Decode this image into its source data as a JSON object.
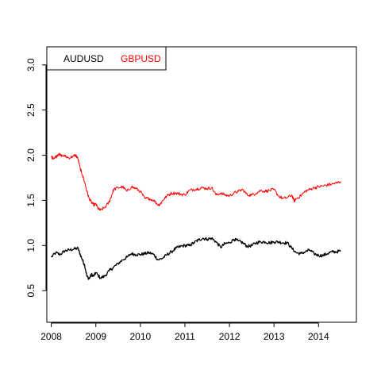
{
  "chart_data": {
    "type": "line",
    "title": "",
    "xlabel": "",
    "ylabel": "",
    "xlim": [
      2007.9,
      2014.85
    ],
    "ylim": [
      0.15,
      3.2
    ],
    "x_ticks": [
      2008,
      2009,
      2010,
      2011,
      2012,
      2013,
      2014
    ],
    "x_tick_labels": [
      "2008",
      "2009",
      "2010",
      "2011",
      "2012",
      "2013",
      "2014"
    ],
    "y_ticks": [
      0.5,
      1.0,
      1.5,
      2.0,
      2.5,
      3.0
    ],
    "y_tick_labels": [
      "0.5",
      "1.0",
      "1.5",
      "2.0",
      "2.5",
      "3.0"
    ],
    "grid": false,
    "legend_position": "top-left",
    "series": [
      {
        "name": "AUDUSD",
        "color": "#000000",
        "points": [
          [
            2008.0,
            0.87
          ],
          [
            2008.1,
            0.92
          ],
          [
            2008.2,
            0.9
          ],
          [
            2008.3,
            0.94
          ],
          [
            2008.4,
            0.95
          ],
          [
            2008.5,
            0.96
          ],
          [
            2008.6,
            0.97
          ],
          [
            2008.65,
            0.9
          ],
          [
            2008.7,
            0.84
          ],
          [
            2008.75,
            0.78
          ],
          [
            2008.8,
            0.66
          ],
          [
            2008.85,
            0.63
          ],
          [
            2008.9,
            0.68
          ],
          [
            2008.95,
            0.66
          ],
          [
            2009.0,
            0.7
          ],
          [
            2009.1,
            0.64
          ],
          [
            2009.2,
            0.66
          ],
          [
            2009.3,
            0.72
          ],
          [
            2009.4,
            0.76
          ],
          [
            2009.5,
            0.8
          ],
          [
            2009.6,
            0.84
          ],
          [
            2009.7,
            0.87
          ],
          [
            2009.8,
            0.91
          ],
          [
            2009.9,
            0.9
          ],
          [
            2010.0,
            0.9
          ],
          [
            2010.1,
            0.91
          ],
          [
            2010.2,
            0.92
          ],
          [
            2010.3,
            0.9
          ],
          [
            2010.4,
            0.84
          ],
          [
            2010.5,
            0.86
          ],
          [
            2010.6,
            0.9
          ],
          [
            2010.7,
            0.93
          ],
          [
            2010.8,
            0.97
          ],
          [
            2010.9,
            0.99
          ],
          [
            2011.0,
            1.0
          ],
          [
            2011.1,
            1.0
          ],
          [
            2011.2,
            1.03
          ],
          [
            2011.3,
            1.06
          ],
          [
            2011.4,
            1.08
          ],
          [
            2011.5,
            1.07
          ],
          [
            2011.6,
            1.08
          ],
          [
            2011.7,
            1.04
          ],
          [
            2011.8,
            0.98
          ],
          [
            2011.9,
            1.02
          ],
          [
            2012.0,
            1.03
          ],
          [
            2012.1,
            1.07
          ],
          [
            2012.2,
            1.05
          ],
          [
            2012.3,
            1.03
          ],
          [
            2012.4,
            0.99
          ],
          [
            2012.5,
            1.0
          ],
          [
            2012.6,
            1.03
          ],
          [
            2012.7,
            1.04
          ],
          [
            2012.8,
            1.04
          ],
          [
            2012.9,
            1.03
          ],
          [
            2013.0,
            1.04
          ],
          [
            2013.1,
            1.04
          ],
          [
            2013.2,
            1.03
          ],
          [
            2013.3,
            1.03
          ],
          [
            2013.4,
            0.97
          ],
          [
            2013.5,
            0.92
          ],
          [
            2013.6,
            0.91
          ],
          [
            2013.7,
            0.93
          ],
          [
            2013.8,
            0.95
          ],
          [
            2013.9,
            0.91
          ],
          [
            2014.0,
            0.89
          ],
          [
            2014.1,
            0.89
          ],
          [
            2014.2,
            0.91
          ],
          [
            2014.3,
            0.93
          ],
          [
            2014.4,
            0.93
          ],
          [
            2014.5,
            0.94
          ]
        ]
      },
      {
        "name": "GBPUSD",
        "color": "#ff0000",
        "points": [
          [
            2008.0,
            1.98
          ],
          [
            2008.05,
            1.97
          ],
          [
            2008.1,
            1.98
          ],
          [
            2008.15,
            2.01
          ],
          [
            2008.2,
            2.0
          ],
          [
            2008.3,
            1.99
          ],
          [
            2008.4,
            1.97
          ],
          [
            2008.5,
            1.99
          ],
          [
            2008.55,
            2.0
          ],
          [
            2008.6,
            1.96
          ],
          [
            2008.65,
            1.85
          ],
          [
            2008.7,
            1.78
          ],
          [
            2008.75,
            1.7
          ],
          [
            2008.8,
            1.6
          ],
          [
            2008.85,
            1.52
          ],
          [
            2008.9,
            1.48
          ],
          [
            2008.95,
            1.45
          ],
          [
            2009.0,
            1.46
          ],
          [
            2009.05,
            1.41
          ],
          [
            2009.1,
            1.39
          ],
          [
            2009.2,
            1.42
          ],
          [
            2009.3,
            1.48
          ],
          [
            2009.35,
            1.55
          ],
          [
            2009.4,
            1.62
          ],
          [
            2009.5,
            1.64
          ],
          [
            2009.6,
            1.65
          ],
          [
            2009.7,
            1.6
          ],
          [
            2009.8,
            1.65
          ],
          [
            2009.9,
            1.63
          ],
          [
            2010.0,
            1.6
          ],
          [
            2010.1,
            1.52
          ],
          [
            2010.2,
            1.52
          ],
          [
            2010.3,
            1.5
          ],
          [
            2010.4,
            1.45
          ],
          [
            2010.45,
            1.46
          ],
          [
            2010.5,
            1.5
          ],
          [
            2010.6,
            1.55
          ],
          [
            2010.7,
            1.58
          ],
          [
            2010.8,
            1.58
          ],
          [
            2010.9,
            1.57
          ],
          [
            2011.0,
            1.56
          ],
          [
            2011.1,
            1.61
          ],
          [
            2011.2,
            1.62
          ],
          [
            2011.3,
            1.63
          ],
          [
            2011.4,
            1.64
          ],
          [
            2011.5,
            1.63
          ],
          [
            2011.6,
            1.64
          ],
          [
            2011.7,
            1.56
          ],
          [
            2011.8,
            1.58
          ],
          [
            2011.9,
            1.56
          ],
          [
            2012.0,
            1.55
          ],
          [
            2012.1,
            1.58
          ],
          [
            2012.2,
            1.6
          ],
          [
            2012.3,
            1.62
          ],
          [
            2012.4,
            1.56
          ],
          [
            2012.5,
            1.56
          ],
          [
            2012.6,
            1.58
          ],
          [
            2012.7,
            1.61
          ],
          [
            2012.8,
            1.6
          ],
          [
            2012.9,
            1.61
          ],
          [
            2013.0,
            1.62
          ],
          [
            2013.1,
            1.55
          ],
          [
            2013.2,
            1.52
          ],
          [
            2013.3,
            1.53
          ],
          [
            2013.4,
            1.56
          ],
          [
            2013.45,
            1.49
          ],
          [
            2013.5,
            1.52
          ],
          [
            2013.6,
            1.55
          ],
          [
            2013.7,
            1.6
          ],
          [
            2013.8,
            1.62
          ],
          [
            2013.9,
            1.64
          ],
          [
            2014.0,
            1.65
          ],
          [
            2014.1,
            1.66
          ],
          [
            2014.2,
            1.67
          ],
          [
            2014.3,
            1.68
          ],
          [
            2014.4,
            1.69
          ],
          [
            2014.5,
            1.71
          ]
        ]
      }
    ]
  }
}
